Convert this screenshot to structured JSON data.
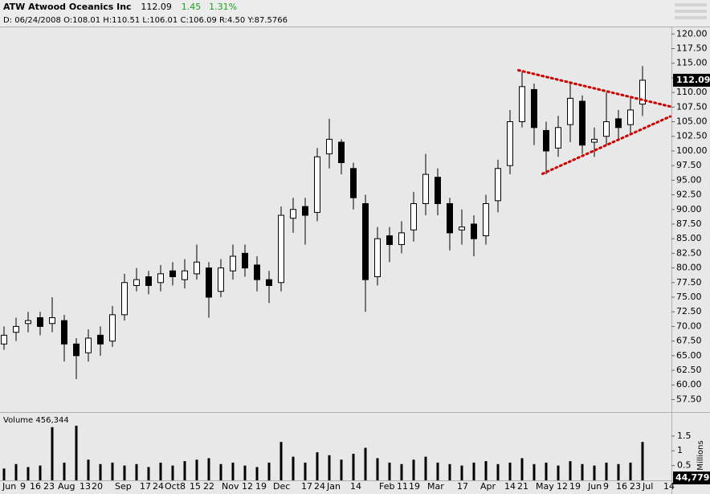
{
  "chart_data": {
    "type": "candlestick",
    "title": "ATW Atwood Oceanics Inc",
    "last_price": 112.09,
    "change": 1.45,
    "change_pct": "1.31%",
    "detail": "D: 06/24/2008 O:108.01 H:110.51 L:106.01 C:106.09 R:4.50 Y:87.5766",
    "volume_label": "Volume 456,344",
    "volume_last": "44,779",
    "volume_unit": "Millions",
    "up_color": "#ffffff",
    "down_color": "#000000",
    "open": [
      67,
      69,
      70.5,
      71.5,
      70.5,
      71,
      67,
      65.5,
      68.5,
      67.5,
      72,
      77,
      78.5,
      77.5,
      79.5,
      78,
      79,
      80,
      76,
      79.5,
      82.5,
      80.5,
      78,
      77.5,
      88.5,
      90.5,
      89.5,
      99.5,
      101.5,
      97,
      91,
      78.5,
      85.5,
      84,
      86.5,
      91,
      95.5,
      91,
      86.5,
      87.5,
      85.5,
      91.5,
      97.5,
      105,
      110.5,
      103.5,
      100.5,
      104.5,
      108.5,
      101.5,
      102.5,
      105.5,
      104.5,
      108.01
    ],
    "high": [
      70,
      71.5,
      72.5,
      72.5,
      75,
      72,
      68,
      69.5,
      70,
      73.5,
      79,
      80,
      79.5,
      80.5,
      81,
      81.5,
      84,
      81,
      81.5,
      84,
      84,
      82,
      79.5,
      90.5,
      92,
      92,
      100.5,
      105.5,
      102,
      98,
      92.5,
      87,
      87,
      88,
      93,
      99.5,
      97,
      92,
      90,
      89,
      92.5,
      98.5,
      107,
      113.5,
      111.5,
      105,
      106,
      111.5,
      109.5,
      104,
      110,
      107,
      109,
      114.5
    ],
    "low": [
      66,
      67.5,
      69,
      68.5,
      69,
      64,
      61,
      64,
      65,
      66.5,
      71,
      76,
      75.5,
      76,
      77,
      76.5,
      78,
      71.5,
      75,
      78,
      78.5,
      76,
      74,
      76,
      86,
      84,
      88,
      97,
      96,
      90,
      72.5,
      77,
      81,
      82.5,
      84.5,
      89,
      89,
      83,
      84,
      82,
      84,
      89.5,
      96,
      104,
      101,
      96,
      99,
      101.5,
      99.5,
      99,
      101,
      102,
      103,
      106
    ],
    "close": [
      68.5,
      70,
      71,
      70,
      71.5,
      67,
      65,
      68,
      67,
      72,
      77.5,
      78,
      77,
      79,
      78.5,
      79.5,
      81,
      75,
      80,
      82,
      80,
      78,
      77,
      89,
      90,
      89,
      99,
      102,
      98,
      92,
      78,
      85,
      84,
      86,
      91,
      96,
      91,
      86,
      87,
      85,
      91,
      97,
      105,
      111,
      104,
      100,
      104,
      109,
      101,
      102,
      105,
      104,
      107,
      112.09
    ],
    "volume": [
      0.4,
      0.55,
      0.45,
      0.5,
      1.8,
      0.6,
      1.85,
      0.7,
      0.55,
      0.6,
      0.5,
      0.55,
      0.45,
      0.6,
      0.5,
      0.65,
      0.7,
      0.75,
      0.55,
      0.6,
      0.5,
      0.45,
      0.6,
      1.3,
      0.8,
      0.6,
      0.95,
      0.85,
      0.7,
      0.9,
      1.1,
      0.75,
      0.6,
      0.55,
      0.7,
      0.8,
      0.6,
      0.55,
      0.5,
      0.6,
      0.65,
      0.55,
      0.6,
      0.75,
      0.55,
      0.6,
      0.5,
      0.65,
      0.55,
      0.5,
      0.6,
      0.55,
      0.6,
      1.3
    ],
    "xtick_labels": [
      "Jun",
      "9",
      "16",
      "23",
      "Aug",
      "13",
      "20",
      "Sep",
      "17",
      "24",
      "Oct",
      "8",
      "15",
      "22",
      "Nov",
      "12",
      "19",
      "Dec",
      "17",
      "24",
      "Jan",
      "14",
      "Feb",
      "11",
      "19",
      "Mar",
      "17",
      "Apr",
      "14",
      "21",
      "May",
      "12",
      "19",
      "Jun",
      "9",
      "16",
      "23",
      "Jul",
      "14"
    ],
    "ylim": [
      55.5,
      121
    ],
    "yticks": [
      {
        "value": 57.5,
        "label": "57.50"
      },
      {
        "value": 60,
        "label": "60.00"
      },
      {
        "value": 62.5,
        "label": "62.50"
      },
      {
        "value": 65,
        "label": "65.00"
      },
      {
        "value": 67.5,
        "label": "67.50"
      },
      {
        "value": 70,
        "label": "70.00"
      },
      {
        "value": 72.5,
        "label": "72.50"
      },
      {
        "value": 75,
        "label": "75.00"
      },
      {
        "value": 77.5,
        "label": "77.50"
      },
      {
        "value": 80,
        "label": "80.00"
      },
      {
        "value": 82.5,
        "label": "82.50"
      },
      {
        "value": 85,
        "label": "85.00"
      },
      {
        "value": 87.5,
        "label": "87.50"
      },
      {
        "value": 90,
        "label": "90.00"
      },
      {
        "value": 92.5,
        "label": "92.50"
      },
      {
        "value": 95,
        "label": "95.00"
      },
      {
        "value": 97.5,
        "label": "97.50"
      },
      {
        "value": 100,
        "label": "100.00"
      },
      {
        "value": 102.5,
        "label": "102.50"
      },
      {
        "value": 105,
        "label": "105.00"
      },
      {
        "value": 107.5,
        "label": "107.50"
      },
      {
        "value": 110,
        "label": "110.00"
      },
      {
        "value": 112.5,
        "label": "112.50"
      },
      {
        "value": 115,
        "label": "115.00"
      },
      {
        "value": 117.5,
        "label": "117.50"
      },
      {
        "value": 120,
        "label": "120.00"
      }
    ],
    "volume_ylim": [
      0,
      2.23
    ],
    "volume_yticks": [
      0.5,
      1,
      1.5
    ],
    "trendlines": [
      {
        "color": "#cc0000",
        "x": [
          42.7,
          55.3
        ],
        "y": [
          113.8,
          107.6
        ]
      },
      {
        "color": "#cc0000",
        "x": [
          44.7,
          55.3
        ],
        "y": [
          96.1,
          105.9
        ]
      }
    ]
  }
}
